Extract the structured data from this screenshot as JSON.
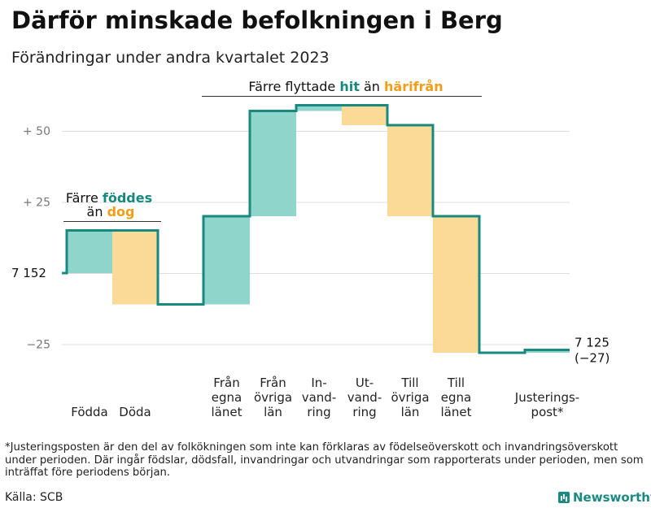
{
  "title": "Därför minskade befolkningen i Berg",
  "subtitle": "Förändringar under andra kvartalet 2023",
  "footnote": "*Justeringsposten är den del av folkökningen som inte kan förklaras av födelseöverskott och invandringsöverskott under perioden. Där ingår födslar, dödsfall, invandringar och utvandringar som rapporterats under perioden, men som inträffat före periodens början.",
  "source": "Källa: SCB",
  "brand": "Newsworthy",
  "colors": {
    "teal_fill": "#8fd5cc",
    "orange_fill": "#fbd996",
    "line": "#17897e",
    "teal_text": "#17897e",
    "orange_text": "#f29d17",
    "grid": "#dddddd"
  },
  "annotations": {
    "births": {
      "part1": "Färre ",
      "highlight1": "föddes",
      "line2_prefix": "än ",
      "highlight2": "dog"
    },
    "migration": {
      "part1": "Färre flyttade ",
      "highlight1": "hit",
      "middle": " än ",
      "highlight2": "härifrån"
    }
  },
  "chart_data": {
    "type": "waterfall",
    "start_value": 7152,
    "start_label": "7 152",
    "end_value": 7125,
    "end_label": "7 125",
    "end_change_label": "(−27)",
    "y_ticks": [
      {
        "value": 50,
        "label": "+  50"
      },
      {
        "value": 25,
        "label": "+  25"
      },
      {
        "value": -25,
        "label": "−25"
      }
    ],
    "grid": true,
    "ylim": [
      -30,
      65
    ],
    "steps": [
      {
        "category": [
          "Födda"
        ],
        "change": 15,
        "kind": "in"
      },
      {
        "category": [
          "Döda"
        ],
        "change": -26,
        "kind": "out"
      },
      {
        "category": [
          "Från",
          "egna",
          "länet"
        ],
        "change": 31,
        "kind": "in"
      },
      {
        "category": [
          "Från",
          "övriga",
          "län"
        ],
        "change": 37,
        "kind": "in"
      },
      {
        "category": [
          "In-",
          "vand-",
          "ring"
        ],
        "change": 2,
        "kind": "in"
      },
      {
        "category": [
          "Ut-",
          "vand-",
          "ring"
        ],
        "change": -7,
        "kind": "out"
      },
      {
        "category": [
          "Till",
          "övriga",
          "län"
        ],
        "change": -32,
        "kind": "out"
      },
      {
        "category": [
          "Till",
          "egna",
          "länet"
        ],
        "change": -48,
        "kind": "out"
      },
      {
        "category": [
          "Justerings-",
          "post*"
        ],
        "change": 1,
        "kind": "adjust"
      }
    ]
  }
}
